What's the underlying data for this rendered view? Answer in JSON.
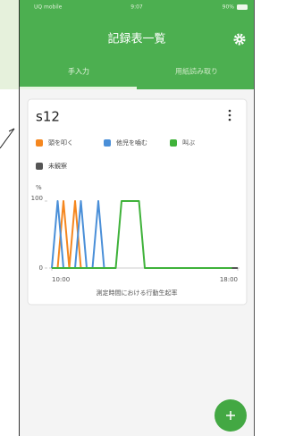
{
  "status_bar": {
    "carrier": "UQ mobile",
    "time": "9:07",
    "battery": "90%"
  },
  "header": {
    "title": "記録表一覧"
  },
  "tabs": [
    "手入力",
    "用紙読み取り"
  ],
  "card": {
    "title": "s12"
  },
  "chart_data": {
    "type": "line",
    "title": "測定時間における行動生起率",
    "y_label": "%",
    "x": [
      10,
      10.25,
      10.5,
      10.75,
      11,
      11.25,
      11.5,
      11.75,
      12,
      12.25,
      12.5,
      12.75,
      13,
      13.25,
      13.5,
      13.75,
      14,
      14.25,
      14.5,
      14.75,
      15,
      15.25,
      15.5,
      15.75,
      16,
      16.25,
      16.5,
      16.75,
      17,
      17.25,
      17.5,
      17.75,
      18
    ],
    "series": [
      {
        "name": "頭を叩く",
        "color": "#f5871f",
        "values": [
          null,
          0,
          100,
          0,
          100,
          0,
          null,
          null,
          null,
          null,
          null,
          null,
          null,
          null,
          null,
          null,
          null,
          null,
          null,
          null,
          null,
          null,
          null,
          null,
          null,
          null,
          null,
          null,
          null,
          null,
          null,
          null,
          null
        ]
      },
      {
        "name": "他児を噛む",
        "color": "#4a8fd8",
        "values": [
          0,
          100,
          0,
          0,
          0,
          100,
          0,
          0,
          100,
          0,
          null,
          null,
          null,
          null,
          null,
          null,
          null,
          null,
          null,
          null,
          null,
          null,
          null,
          null,
          null,
          null,
          null,
          null,
          null,
          null,
          null,
          null,
          null
        ]
      },
      {
        "name": "叫ぶ",
        "color": "#3fb23a",
        "values": [
          0,
          0,
          0,
          0,
          0,
          0,
          0,
          0,
          0,
          0,
          0,
          0,
          100,
          100,
          100,
          100,
          0,
          0,
          0,
          0,
          0,
          0,
          0,
          0,
          0,
          0,
          0,
          0,
          0,
          0,
          0,
          0,
          null
        ]
      },
      {
        "name": "未観察",
        "color": "#555555",
        "values": [
          null,
          null,
          null,
          null,
          null,
          null,
          null,
          null,
          null,
          null,
          null,
          null,
          null,
          null,
          null,
          null,
          null,
          null,
          null,
          null,
          null,
          null,
          null,
          null,
          null,
          null,
          null,
          null,
          null,
          null,
          null,
          0,
          0
        ]
      }
    ],
    "xlim": [
      10,
      18
    ],
    "xticks": [
      {
        "value": 10,
        "label": "10:00"
      },
      {
        "value": 18,
        "label": "18:00"
      }
    ],
    "ylim": [
      0,
      100
    ],
    "yticks": [
      0,
      100
    ]
  }
}
